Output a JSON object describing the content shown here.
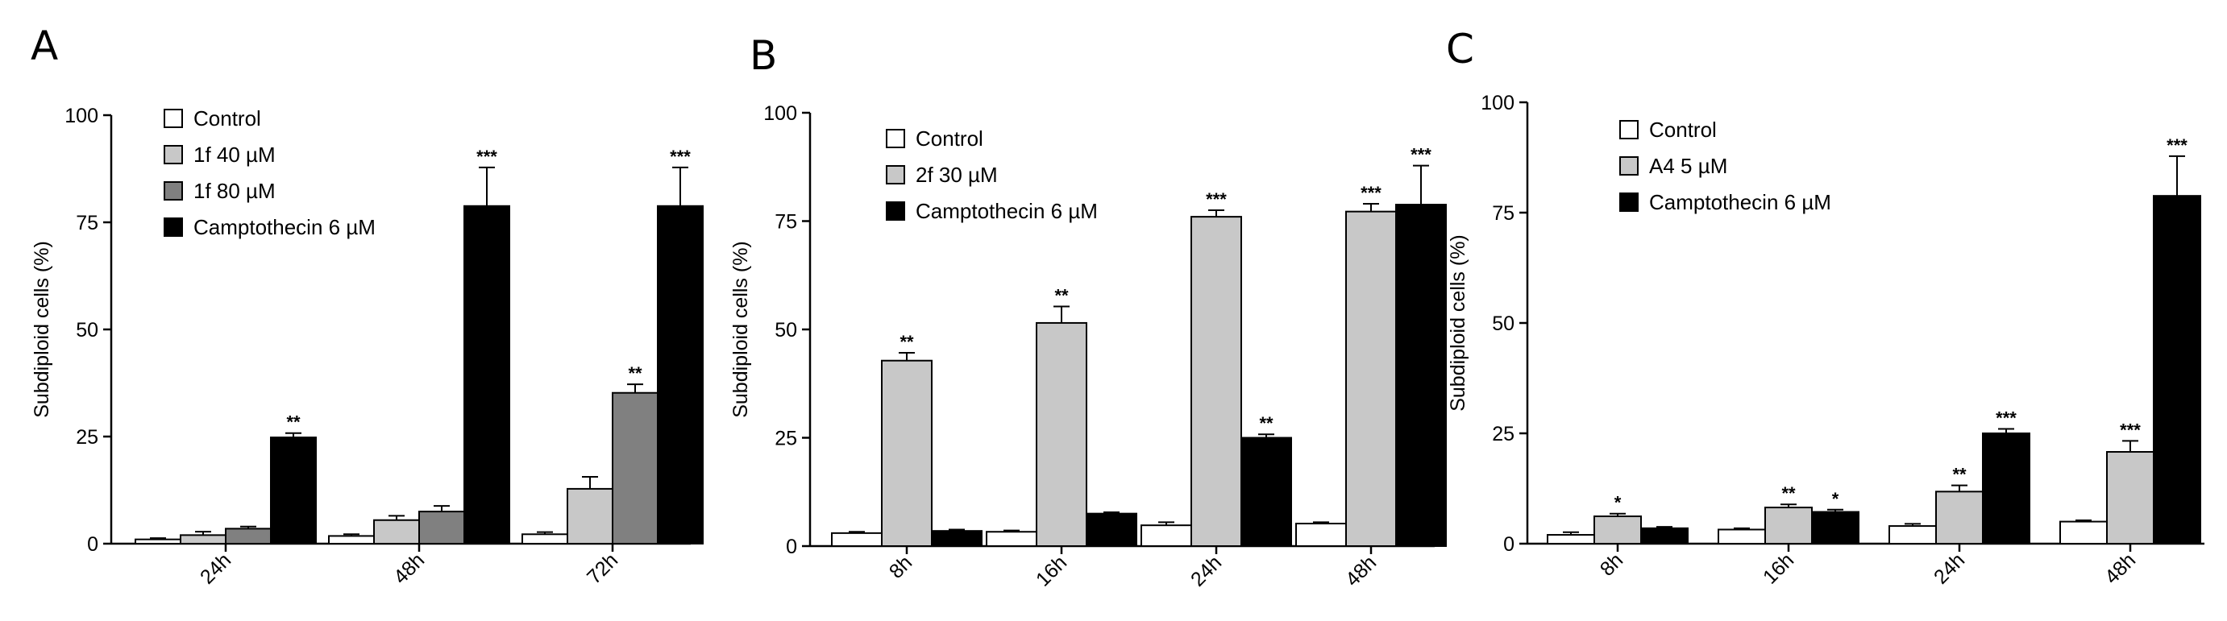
{
  "chart_data": [
    {
      "panel": "A",
      "type": "bar",
      "ylabel": "Subdiploid cells (%)",
      "ylim": [
        0,
        100
      ],
      "yticks": [
        "0",
        "25",
        "50",
        "75",
        "100"
      ],
      "categories": [
        "24h",
        "48h",
        "72h"
      ],
      "series": [
        {
          "name": "Control",
          "color": "#ffffff",
          "values": [
            1.0,
            1.8,
            2.2
          ],
          "errors": [
            0.3,
            0.4,
            0.5
          ],
          "sig": [
            "",
            "",
            ""
          ]
        },
        {
          "name": "1f 40 µM",
          "color": "#c8c8c8",
          "values": [
            2.0,
            5.5,
            12.8
          ],
          "errors": [
            0.8,
            1.0,
            2.8
          ],
          "sig": [
            "",
            "",
            ""
          ]
        },
        {
          "name": "1f 80 µM",
          "color": "#808080",
          "values": [
            3.5,
            7.5,
            35.2
          ],
          "errors": [
            0.5,
            1.3,
            2.0
          ],
          "sig": [
            "",
            "",
            "**"
          ]
        },
        {
          "name": "Camptothecin 6 µM",
          "color": "#000000",
          "values": [
            24.8,
            78.8,
            78.8
          ],
          "errors": [
            1.0,
            9.0,
            9.0
          ],
          "sig": [
            "**",
            "***",
            "***"
          ]
        }
      ]
    },
    {
      "panel": "B",
      "type": "bar",
      "ylabel": "Subdiploid cells (%)",
      "ylim": [
        0,
        100
      ],
      "yticks": [
        "0",
        "25",
        "50",
        "75",
        "100"
      ],
      "categories": [
        "8h",
        "16h",
        "24h",
        "48h"
      ],
      "series": [
        {
          "name": "Control",
          "color": "#ffffff",
          "values": [
            3.0,
            3.3,
            4.8,
            5.2
          ],
          "errors": [
            0.3,
            0.3,
            0.7,
            0.3
          ],
          "sig": [
            "",
            "",
            "",
            ""
          ]
        },
        {
          "name": "2f 30 µM",
          "color": "#c8c8c8",
          "values": [
            42.8,
            51.5,
            76.0,
            77.2
          ],
          "errors": [
            1.8,
            3.8,
            1.5,
            1.8
          ],
          "sig": [
            "**",
            "**",
            "***",
            "***"
          ]
        },
        {
          "name": "Camptothecin 6 µM",
          "color": "#000000",
          "values": [
            3.5,
            7.5,
            25.0,
            78.8
          ],
          "errors": [
            0.3,
            0.3,
            0.8,
            9.0
          ],
          "sig": [
            "",
            "",
            "**",
            "***"
          ]
        }
      ]
    },
    {
      "panel": "C",
      "type": "bar",
      "ylabel": "Subdiploid cells (%)",
      "ylim": [
        0,
        100
      ],
      "yticks": [
        "0",
        "25",
        "50",
        "75",
        "100"
      ],
      "categories": [
        "8h",
        "16h",
        "24h",
        "48h"
      ],
      "series": [
        {
          "name": "Control",
          "color": "#ffffff",
          "values": [
            2.0,
            3.2,
            4.0,
            5.0
          ],
          "errors": [
            0.6,
            0.3,
            0.5,
            0.3
          ],
          "sig": [
            "",
            "",
            "",
            ""
          ]
        },
        {
          "name": "A4 5 µM",
          "color": "#c8c8c8",
          "values": [
            6.2,
            8.2,
            11.8,
            20.8
          ],
          "errors": [
            0.6,
            0.7,
            1.4,
            2.5
          ],
          "sig": [
            "*",
            "**",
            "**",
            "***"
          ]
        },
        {
          "name": "Camptothecin 6 µM",
          "color": "#000000",
          "values": [
            3.5,
            7.2,
            25.0,
            78.8
          ],
          "errors": [
            0.3,
            0.5,
            1.0,
            9.0
          ],
          "sig": [
            "",
            "*",
            "***",
            "***"
          ]
        }
      ]
    }
  ]
}
